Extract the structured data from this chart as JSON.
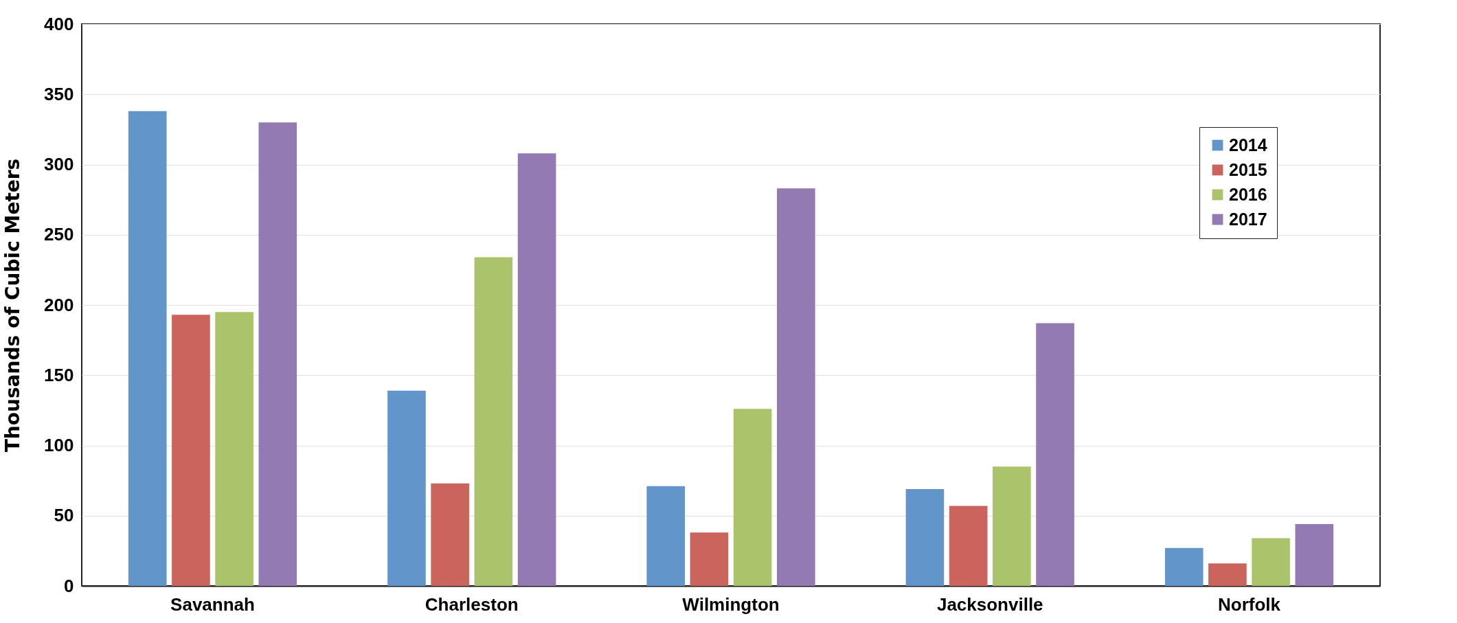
{
  "chart_data": {
    "type": "bar",
    "ylabel": "Thousands of Cubic Meters",
    "categories": [
      "Savannah",
      "Charleston",
      "Wilmington",
      "Jacksonville",
      "Norfolk"
    ],
    "series": [
      {
        "name": "2014",
        "color": "#6295c9",
        "values": [
          338,
          139,
          71,
          69,
          27
        ]
      },
      {
        "name": "2015",
        "color": "#cb645c",
        "values": [
          193,
          73,
          38,
          57,
          16
        ]
      },
      {
        "name": "2016",
        "color": "#abc46b",
        "values": [
          195,
          234,
          126,
          85,
          34
        ]
      },
      {
        "name": "2017",
        "color": "#937ab3",
        "values": [
          330,
          308,
          283,
          187,
          44
        ]
      }
    ],
    "ylim": [
      0,
      400
    ],
    "yticks": [
      0,
      50,
      100,
      150,
      200,
      250,
      300,
      350,
      400
    ],
    "grid": "y",
    "legend": "top right"
  }
}
